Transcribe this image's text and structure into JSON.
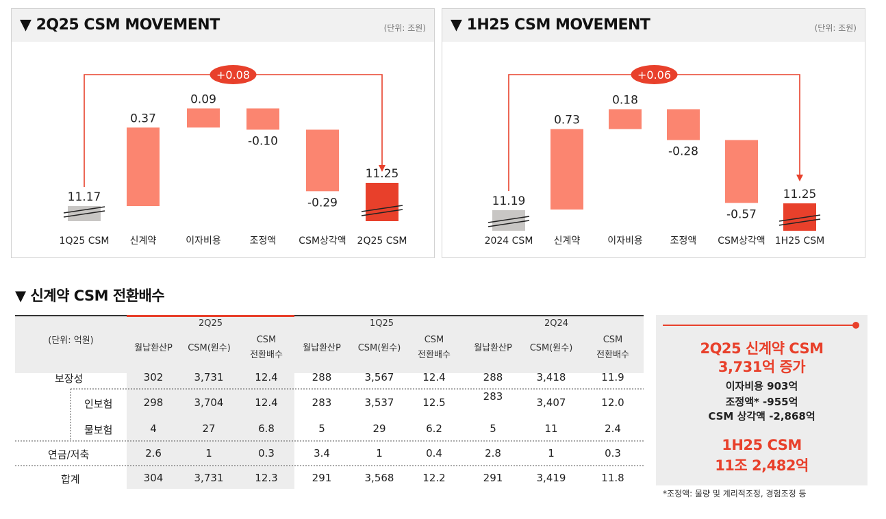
{
  "colors": {
    "accent": "#e8402b",
    "bar": "#fb8570",
    "base": "#c8c6c4",
    "dark": "#222222"
  },
  "chart_data": [
    {
      "type": "waterfall",
      "title": "2Q25 CSM MOVEMENT",
      "unit": "(단위: 조원)",
      "categories": [
        "1Q25 CSM",
        "신계약",
        "이자비용",
        "조정액",
        "CSM상각액",
        "2Q25 CSM"
      ],
      "values": [
        11.17,
        0.37,
        0.09,
        -0.1,
        -0.29,
        11.25
      ],
      "labels": [
        "11.17",
        "0.37",
        "0.09",
        "-0.10",
        "-0.29",
        "11.25"
      ],
      "change_label": "+0.08"
    },
    {
      "type": "waterfall",
      "title": "1H25 CSM MOVEMENT",
      "unit": "(단위: 조원)",
      "categories": [
        "2024 CSM",
        "신계약",
        "이자비용",
        "조정액",
        "CSM상각액",
        "1H25 CSM"
      ],
      "values": [
        11.19,
        0.73,
        0.18,
        -0.28,
        -0.57,
        11.25
      ],
      "labels": [
        "11.19",
        "0.73",
        "0.18",
        "-0.28",
        "-0.57",
        "11.25"
      ],
      "change_label": "+0.06"
    }
  ],
  "table": {
    "title": "신계약 CSM 전환배수",
    "unit": "(단위: 억원)",
    "periods": [
      "2Q25",
      "1Q25",
      "2Q24"
    ],
    "subheaders": [
      [
        "월납환산P"
      ],
      [
        "CSM(원수)"
      ],
      [
        "CSM",
        "전환배수"
      ]
    ],
    "rows": [
      {
        "label": "보장성",
        "values": [
          "302",
          "3,731",
          "12.4",
          "288",
          "3,567",
          "12.4",
          "288",
          "3,418",
          "11.9"
        ]
      },
      {
        "label": "인보험",
        "values": [
          "298",
          "3,704",
          "12.4",
          "283",
          "3,537",
          "12.5",
          "283",
          "3,407",
          "12.0"
        ]
      },
      {
        "label": "물보험",
        "values": [
          "4",
          "27",
          "6.8",
          "5",
          "29",
          "6.2",
          "5",
          "11",
          "2.4"
        ]
      },
      {
        "label": "연금/저축",
        "values": [
          "2.6",
          "1",
          "0.3",
          "3.4",
          "1",
          "0.4",
          "2.8",
          "1",
          "0.3"
        ]
      },
      {
        "label": "합계",
        "values": [
          "304",
          "3,731",
          "12.3",
          "291",
          "3,568",
          "12.2",
          "291",
          "3,419",
          "11.8"
        ]
      }
    ]
  },
  "summary": {
    "line1": "2Q25 신계약 CSM",
    "line2": "3,731억 증가",
    "line3": "이자비용 903억",
    "line4": "조정액* -955억",
    "line5": "CSM 상각액 -2,868억",
    "line6": "1H25 CSM",
    "line7": "11조 2,482억"
  },
  "footnote": "*조정액: 물량 및 계리적조정, 경험조정 등"
}
